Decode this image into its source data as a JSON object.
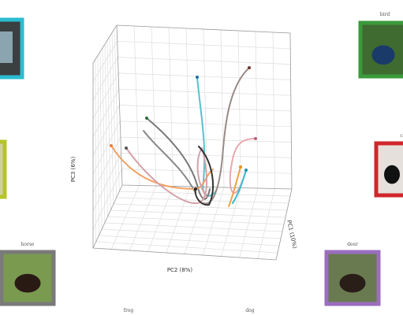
{
  "axes": {
    "x_label": "PC2 (8%)",
    "y_label": "PC1 (10%)",
    "z_label": "PC3 (6%)"
  },
  "panels": [
    {
      "label": "horse",
      "color": "#7a7a7a"
    },
    {
      "label": "bird",
      "color": "#3a9a3a"
    },
    {
      "label": "cat",
      "color": "#d0262b"
    },
    {
      "label": "deer",
      "color": "#9b6ec0"
    }
  ],
  "bottom_labels": [
    {
      "label": "frog",
      "color": "#c08a8a"
    },
    {
      "label": "dog",
      "color": "#333333"
    }
  ]
}
